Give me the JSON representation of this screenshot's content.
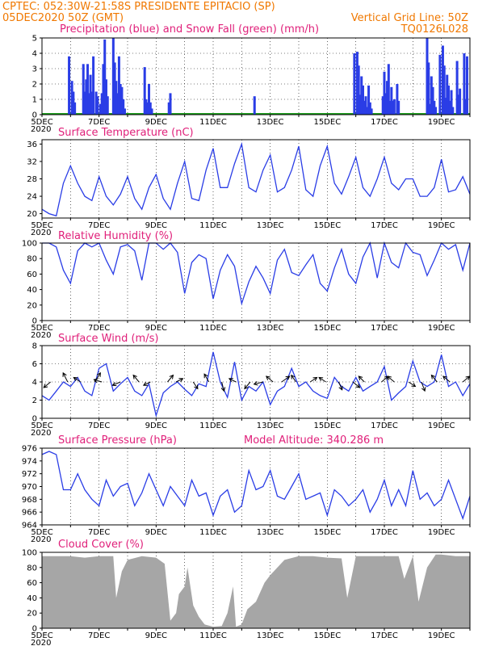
{
  "header": {
    "station": "CPTEC:  052:30W-21:58S  PRESIDENTE EPITACIO (SP)",
    "run": "05DEC2020 50Z (GMT)",
    "grid_note": "Vertical Grid Line: 50Z",
    "code": "TQ0126L028"
  },
  "colors": {
    "header": "#f07800",
    "title": "#e0207a",
    "line": "#2a3de6",
    "snow": "#1ea01e",
    "cloud": "#a6a6a6"
  },
  "x_axis": {
    "start_day": 5,
    "end_day": 20,
    "labels": [
      {
        "day": 5,
        "text": "5DEC"
      },
      {
        "day": 7,
        "text": "7DEC"
      },
      {
        "day": 9,
        "text": "9DEC"
      },
      {
        "day": 11,
        "text": "11DEC"
      },
      {
        "day": 13,
        "text": "13DEC"
      },
      {
        "day": 15,
        "text": "15DEC"
      },
      {
        "day": 17,
        "text": "17DEC"
      },
      {
        "day": 19,
        "text": "19DEC"
      }
    ],
    "year_label": "2020"
  },
  "chart_data": [
    {
      "id": "precip",
      "type": "bar",
      "title": "Precipitation (blue) and Snow Fall (green) (mm/h)",
      "ylim": [
        0,
        5
      ],
      "yticks": [
        0,
        1,
        2,
        3,
        4,
        5
      ],
      "dashed_grid": true,
      "series": [
        {
          "name": "Precipitation",
          "color": "#2a3de6",
          "x": [
            5.95,
            6.05,
            6.1,
            6.15,
            6.45,
            6.5,
            6.55,
            6.6,
            6.65,
            6.7,
            6.75,
            6.8,
            6.9,
            6.95,
            7.05,
            7.1,
            7.15,
            7.2,
            7.25,
            7.3,
            7.5,
            7.55,
            7.6,
            7.65,
            7.7,
            7.75,
            7.8,
            7.85,
            7.9,
            8.6,
            8.65,
            8.7,
            8.75,
            8.8,
            8.85,
            9.45,
            9.5,
            12.45,
            15.95,
            16.05,
            16.1,
            16.15,
            16.2,
            16.25,
            16.3,
            16.35,
            16.4,
            16.45,
            16.5,
            16.55,
            16.95,
            17.0,
            17.05,
            17.1,
            17.15,
            17.2,
            17.25,
            17.3,
            17.35,
            17.45,
            17.5,
            18.5,
            18.55,
            18.6,
            18.65,
            18.7,
            18.75,
            18.8,
            18.95,
            19.05,
            19.1,
            19.15,
            19.2,
            19.25,
            19.3,
            19.35,
            19.4,
            19.55,
            19.6,
            19.65,
            19.8,
            19.85,
            19.9
          ],
          "values": [
            3.8,
            2.2,
            1.5,
            0.8,
            3.3,
            1.5,
            2.3,
            3.3,
            1.4,
            2.6,
            1.5,
            3.8,
            1.5,
            1.2,
            0.7,
            1.4,
            3.3,
            4.9,
            2.3,
            1.2,
            5,
            3.4,
            2.2,
            1.4,
            3.8,
            2.0,
            1.8,
            1.0,
            0.4,
            3.1,
            1.0,
            0.8,
            2.0,
            0.8,
            0.4,
            0.8,
            1.4,
            1.2,
            4.0,
            4.1,
            3.2,
            1.3,
            2.5,
            1.9,
            0.9,
            1.2,
            0.5,
            1.9,
            0.8,
            0.4,
            1.2,
            2.8,
            1.4,
            2.2,
            3.3,
            0.9,
            1.8,
            0.9,
            1.0,
            2.0,
            0.9,
            5,
            3.4,
            0.7,
            2.5,
            1.8,
            0.9,
            0.5,
            3.9,
            4.5,
            3.2,
            1.1,
            2.6,
            1.9,
            0.9,
            1.6,
            0.5,
            3.5,
            1.3,
            1.7,
            4.0,
            1.0,
            3.8
          ]
        }
      ]
    },
    {
      "id": "temp",
      "type": "line",
      "title": "Surface Temperature (nC)",
      "ylim": [
        19,
        37
      ],
      "yticks": [
        20,
        24,
        28,
        32,
        36
      ],
      "series": [
        {
          "name": "Temperature",
          "color": "#2a3de6",
          "x": [
            5.0,
            5.25,
            5.5,
            5.75,
            6.0,
            6.25,
            6.5,
            6.75,
            7.0,
            7.25,
            7.5,
            7.75,
            8.0,
            8.25,
            8.5,
            8.75,
            9.0,
            9.25,
            9.5,
            9.75,
            10.0,
            10.25,
            10.5,
            10.75,
            11.0,
            11.25,
            11.5,
            11.75,
            12.0,
            12.25,
            12.5,
            12.75,
            13.0,
            13.25,
            13.5,
            13.75,
            14.0,
            14.25,
            14.5,
            14.75,
            15.0,
            15.25,
            15.5,
            15.75,
            16.0,
            16.25,
            16.5,
            16.75,
            17.0,
            17.25,
            17.5,
            17.75,
            18.0,
            18.25,
            18.5,
            18.75,
            19.0,
            19.25,
            19.5,
            19.75,
            20.0
          ],
          "values": [
            21,
            20,
            19.5,
            27,
            31,
            27,
            24,
            23,
            28.5,
            24,
            22,
            24.5,
            28.5,
            23.5,
            21,
            26,
            29,
            23.5,
            21,
            27,
            32,
            23.5,
            23,
            30,
            35,
            26,
            26,
            31.5,
            36,
            26,
            25,
            30,
            33.5,
            25,
            26,
            30,
            35.5,
            25.5,
            24,
            31,
            35.5,
            27,
            24.5,
            28.5,
            33,
            26,
            24,
            28,
            33,
            27,
            25.5,
            28,
            28,
            24,
            24,
            26,
            32.5,
            25,
            25.5,
            28.5,
            24.5
          ]
        }
      ]
    },
    {
      "id": "rh",
      "type": "line",
      "title": "Relative Humidity (%)",
      "ylim": [
        0,
        100
      ],
      "yticks": [
        0,
        20,
        40,
        60,
        80,
        100
      ],
      "series": [
        {
          "name": "Relative Humidity",
          "color": "#2a3de6",
          "x": [
            5.0,
            5.25,
            5.5,
            5.75,
            6.0,
            6.25,
            6.5,
            6.75,
            7.0,
            7.25,
            7.5,
            7.75,
            8.0,
            8.25,
            8.5,
            8.75,
            9.0,
            9.25,
            9.5,
            9.75,
            10.0,
            10.25,
            10.5,
            10.75,
            11.0,
            11.25,
            11.5,
            11.75,
            12.0,
            12.25,
            12.5,
            12.75,
            13.0,
            13.25,
            13.5,
            13.75,
            14.0,
            14.25,
            14.5,
            14.75,
            15.0,
            15.25,
            15.5,
            15.75,
            16.0,
            16.25,
            16.5,
            16.75,
            17.0,
            17.25,
            17.5,
            17.75,
            18.0,
            18.25,
            18.5,
            18.75,
            19.0,
            19.25,
            19.5,
            19.75,
            20.0
          ],
          "values": [
            100,
            100,
            95,
            65,
            48,
            90,
            100,
            95,
            100,
            78,
            60,
            95,
            98,
            90,
            52,
            100,
            100,
            92,
            100,
            88,
            35,
            75,
            85,
            80,
            28,
            65,
            85,
            70,
            22,
            50,
            70,
            55,
            35,
            78,
            92,
            62,
            58,
            72,
            85,
            48,
            38,
            68,
            92,
            60,
            48,
            82,
            100,
            55,
            100,
            75,
            68,
            100,
            88,
            85,
            58,
            78,
            100,
            92,
            98,
            65,
            100
          ]
        }
      ]
    },
    {
      "id": "wind",
      "type": "line",
      "title": "Surface Wind (m/s)",
      "ylim": [
        0,
        8
      ],
      "yticks": [
        0,
        2,
        4,
        6,
        8
      ],
      "dashed_grid": true,
      "series": [
        {
          "name": "Wind speed",
          "color": "#2a3de6",
          "x": [
            5.0,
            5.25,
            5.5,
            5.75,
            6.0,
            6.25,
            6.5,
            6.75,
            7.0,
            7.25,
            7.5,
            7.75,
            8.0,
            8.25,
            8.5,
            8.75,
            9.0,
            9.25,
            9.5,
            9.75,
            10.0,
            10.25,
            10.5,
            10.75,
            11.0,
            11.25,
            11.5,
            11.75,
            12.0,
            12.25,
            12.5,
            12.75,
            13.0,
            13.25,
            13.5,
            13.75,
            14.0,
            14.25,
            14.5,
            14.75,
            15.0,
            15.25,
            15.5,
            15.75,
            16.0,
            16.25,
            16.5,
            16.75,
            17.0,
            17.25,
            17.5,
            17.75,
            18.0,
            18.25,
            18.5,
            18.75,
            19.0,
            19.25,
            19.5,
            19.75,
            20.0
          ],
          "values": [
            2.5,
            2,
            3,
            4,
            3.5,
            4.5,
            3,
            2.5,
            5.5,
            6,
            3,
            3.8,
            4.5,
            3,
            2.5,
            3.8,
            0.3,
            2.8,
            3.5,
            4,
            3.2,
            2.5,
            3.8,
            3.5,
            7.3,
            4,
            2.3,
            6.2,
            2,
            3.5,
            3,
            4,
            1.5,
            3,
            3.5,
            5.5,
            3.5,
            4,
            3,
            2.5,
            2.2,
            4.5,
            3.5,
            3,
            4.5,
            3,
            3.5,
            4,
            5.7,
            2,
            2.8,
            3.5,
            6.3,
            4,
            3.5,
            4,
            7,
            3.5,
            4,
            2.5,
            3.8
          ]
        }
      ],
      "arrows": [
        {
          "x": 5.3,
          "u": -0.6,
          "v": -0.5
        },
        {
          "x": 5.9,
          "u": -0.4,
          "v": 0.8
        },
        {
          "x": 6.35,
          "u": -0.6,
          "v": 0.4
        },
        {
          "x": 6.85,
          "u": 0.5,
          "v": 0.8
        },
        {
          "x": 7.1,
          "u": -0.7,
          "v": 0.2
        },
        {
          "x": 7.75,
          "u": -0.7,
          "v": -0.3
        },
        {
          "x": 8.4,
          "u": -0.5,
          "v": 0.6
        },
        {
          "x": 8.8,
          "u": -0.6,
          "v": -0.3
        },
        {
          "x": 9.4,
          "u": 0.5,
          "v": 0.6
        },
        {
          "x": 9.7,
          "u": 0.6,
          "v": 0.3
        },
        {
          "x": 10.3,
          "u": 0.4,
          "v": -0.6
        },
        {
          "x": 10.85,
          "u": -0.4,
          "v": 0.7
        },
        {
          "x": 11.3,
          "u": 0.2,
          "v": -0.8
        },
        {
          "x": 11.8,
          "u": -0.6,
          "v": 0.3
        },
        {
          "x": 12.3,
          "u": -0.5,
          "v": -0.6
        },
        {
          "x": 12.75,
          "u": -0.8,
          "v": -0.2
        },
        {
          "x": 13.1,
          "u": -0.6,
          "v": 0.5
        },
        {
          "x": 13.4,
          "u": 0.7,
          "v": 0.5
        },
        {
          "x": 13.9,
          "u": -0.4,
          "v": 0.6
        },
        {
          "x": 14.4,
          "u": 0.6,
          "v": 0.4
        },
        {
          "x": 14.95,
          "u": -0.6,
          "v": 0.4
        },
        {
          "x": 15.4,
          "u": 0.3,
          "v": -0.7
        },
        {
          "x": 15.9,
          "u": 0.6,
          "v": -0.5
        },
        {
          "x": 16.3,
          "u": -0.5,
          "v": 0.5
        },
        {
          "x": 16.9,
          "u": 0.6,
          "v": 0.5
        },
        {
          "x": 17.35,
          "u": -0.6,
          "v": 0.5
        },
        {
          "x": 17.85,
          "u": 0.6,
          "v": -0.4
        },
        {
          "x": 18.3,
          "u": 0.3,
          "v": -0.8
        },
        {
          "x": 18.85,
          "u": -0.5,
          "v": 0.6
        },
        {
          "x": 19.3,
          "u": -0.6,
          "v": 0.5
        },
        {
          "x": 19.75,
          "u": 0.6,
          "v": 0.5
        }
      ]
    },
    {
      "id": "pres",
      "type": "line",
      "title": "Surface Pressure (hPa)",
      "annotation": "Model Altitude: 340.286 m",
      "ylim": [
        964,
        976
      ],
      "yticks": [
        964,
        966,
        968,
        970,
        972,
        974,
        976
      ],
      "series": [
        {
          "name": "Pressure",
          "color": "#2a3de6",
          "x": [
            5.0,
            5.25,
            5.5,
            5.75,
            6.0,
            6.25,
            6.5,
            6.75,
            7.0,
            7.25,
            7.5,
            7.75,
            8.0,
            8.25,
            8.5,
            8.75,
            9.0,
            9.25,
            9.5,
            9.75,
            10.0,
            10.25,
            10.5,
            10.75,
            11.0,
            11.25,
            11.5,
            11.75,
            12.0,
            12.25,
            12.5,
            12.75,
            13.0,
            13.25,
            13.5,
            13.75,
            14.0,
            14.25,
            14.5,
            14.75,
            15.0,
            15.25,
            15.5,
            15.75,
            16.0,
            16.25,
            16.5,
            16.75,
            17.0,
            17.25,
            17.5,
            17.75,
            18.0,
            18.25,
            18.5,
            18.75,
            19.0,
            19.25,
            19.5,
            19.75,
            20.0
          ],
          "values": [
            975,
            975.5,
            975,
            969.5,
            969.5,
            972,
            969.5,
            968,
            967,
            971,
            968.5,
            970,
            970.5,
            967,
            969,
            972,
            969.5,
            967,
            970,
            968.5,
            967,
            971,
            968.5,
            969,
            965.5,
            968.5,
            969.5,
            966,
            967,
            972.5,
            969.5,
            970,
            972.5,
            968.5,
            968,
            970,
            972,
            968,
            968.5,
            969,
            965.5,
            969.5,
            968.5,
            967,
            968,
            969.5,
            966,
            968,
            971,
            967,
            969.5,
            967,
            972.5,
            968,
            969,
            967,
            968,
            971,
            968,
            965,
            968.5
          ]
        }
      ]
    },
    {
      "id": "cloud",
      "type": "area",
      "title": "Cloud Cover (%)",
      "ylim": [
        0,
        100
      ],
      "yticks": [
        0,
        20,
        40,
        60,
        80,
        100
      ],
      "series": [
        {
          "name": "Cloud Cover",
          "color": "#a6a6a6",
          "x": [
            5.0,
            5.5,
            6.0,
            6.5,
            7.0,
            7.5,
            7.6,
            7.8,
            8.0,
            8.5,
            9.0,
            9.3,
            9.5,
            9.7,
            9.8,
            10.0,
            10.1,
            10.3,
            10.5,
            10.7,
            11.0,
            11.3,
            11.5,
            11.7,
            11.8,
            12.0,
            12.2,
            12.5,
            12.8,
            13.0,
            13.5,
            14.0,
            14.5,
            15.0,
            15.5,
            15.7,
            16.0,
            16.5,
            17.0,
            17.5,
            17.7,
            18.0,
            18.2,
            18.5,
            18.8,
            19.0,
            19.5,
            20.0
          ],
          "values": [
            95,
            95,
            95,
            93,
            95,
            95,
            40,
            75,
            90,
            95,
            93,
            85,
            10,
            20,
            45,
            55,
            80,
            30,
            15,
            5,
            2,
            3,
            20,
            55,
            2,
            5,
            25,
            35,
            60,
            70,
            90,
            95,
            95,
            93,
            92,
            40,
            95,
            95,
            95,
            95,
            65,
            95,
            35,
            80,
            97,
            97,
            95,
            95
          ]
        }
      ]
    }
  ]
}
